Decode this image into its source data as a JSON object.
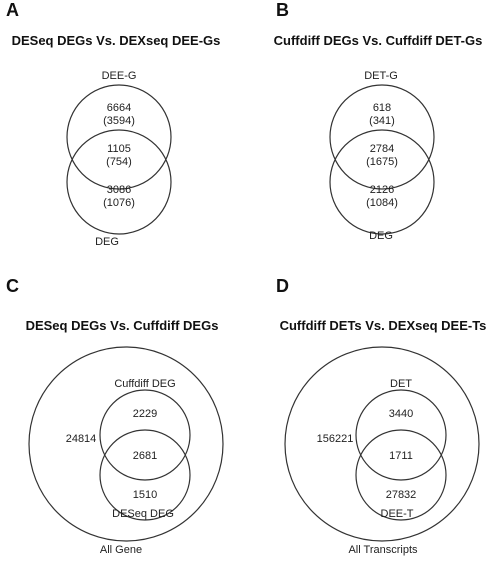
{
  "panels": {
    "A": {
      "letter": "A",
      "title": "DESeq DEGs Vs. DEXseq DEE-Gs",
      "top_label": "DEE-G",
      "bottom_label": "DEG",
      "top_only": "6664",
      "top_only_sub": "(3594)",
      "overlap": "1105",
      "overlap_sub": "(754)",
      "bottom_only": "3086",
      "bottom_only_sub": "(1076)"
    },
    "B": {
      "letter": "B",
      "title": "Cuffdiff DEGs Vs. Cuffdiff DET-Gs",
      "top_label": "DET-G",
      "bottom_label": "DEG",
      "top_only": "618",
      "top_only_sub": "(341)",
      "overlap": "2784",
      "overlap_sub": "(1675)",
      "bottom_only": "2126",
      "bottom_only_sub": "(1084)"
    },
    "C": {
      "letter": "C",
      "title": "DESeq DEGs Vs. Cuffdiff DEGs",
      "top_label": "Cuffdiff DEG",
      "bottom_label": "DESeq DEG",
      "top_only": "2229",
      "overlap": "2681",
      "bottom_only": "1510",
      "outside": "24814",
      "universe_label": "All Gene"
    },
    "D": {
      "letter": "D",
      "title": "Cuffdiff DETs Vs. DEXseq DEE-Ts",
      "top_label": "DET",
      "bottom_label": "DEE-T",
      "top_only": "3440",
      "overlap": "1711",
      "bottom_only": "27832",
      "outside": "156221",
      "universe_label": "All Transcripts"
    }
  }
}
